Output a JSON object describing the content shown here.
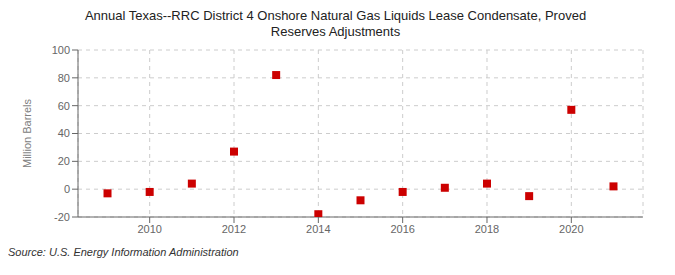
{
  "chart_data": {
    "type": "scatter",
    "title": "Annual Texas--RRC District 4 Onshore Natural Gas Liquids Lease Condensate, Proved\nReserves Adjustments",
    "ylabel": "Million Barrels",
    "annotations": [
      "Source: U.S. Energy Information Administration"
    ],
    "x": [
      2009,
      2010,
      2011,
      2012,
      2013,
      2014,
      2015,
      2016,
      2017,
      2018,
      2019,
      2020,
      2021
    ],
    "values": [
      -3.0,
      -2.0,
      4.0,
      27.0,
      82.0,
      -18.0,
      -8.0,
      -2.0,
      1.0,
      4.0,
      -5.0,
      57.0,
      2.0
    ],
    "color": "#cc0000",
    "marker": "square",
    "xlim": [
      2008.3,
      2021.7
    ],
    "xticks": [
      2010,
      2012,
      2014,
      2016,
      2018,
      2020
    ],
    "ylim": [
      -20,
      100
    ],
    "yticks": [
      -20,
      0,
      20,
      40,
      60,
      80,
      100
    ],
    "grid": true
  }
}
